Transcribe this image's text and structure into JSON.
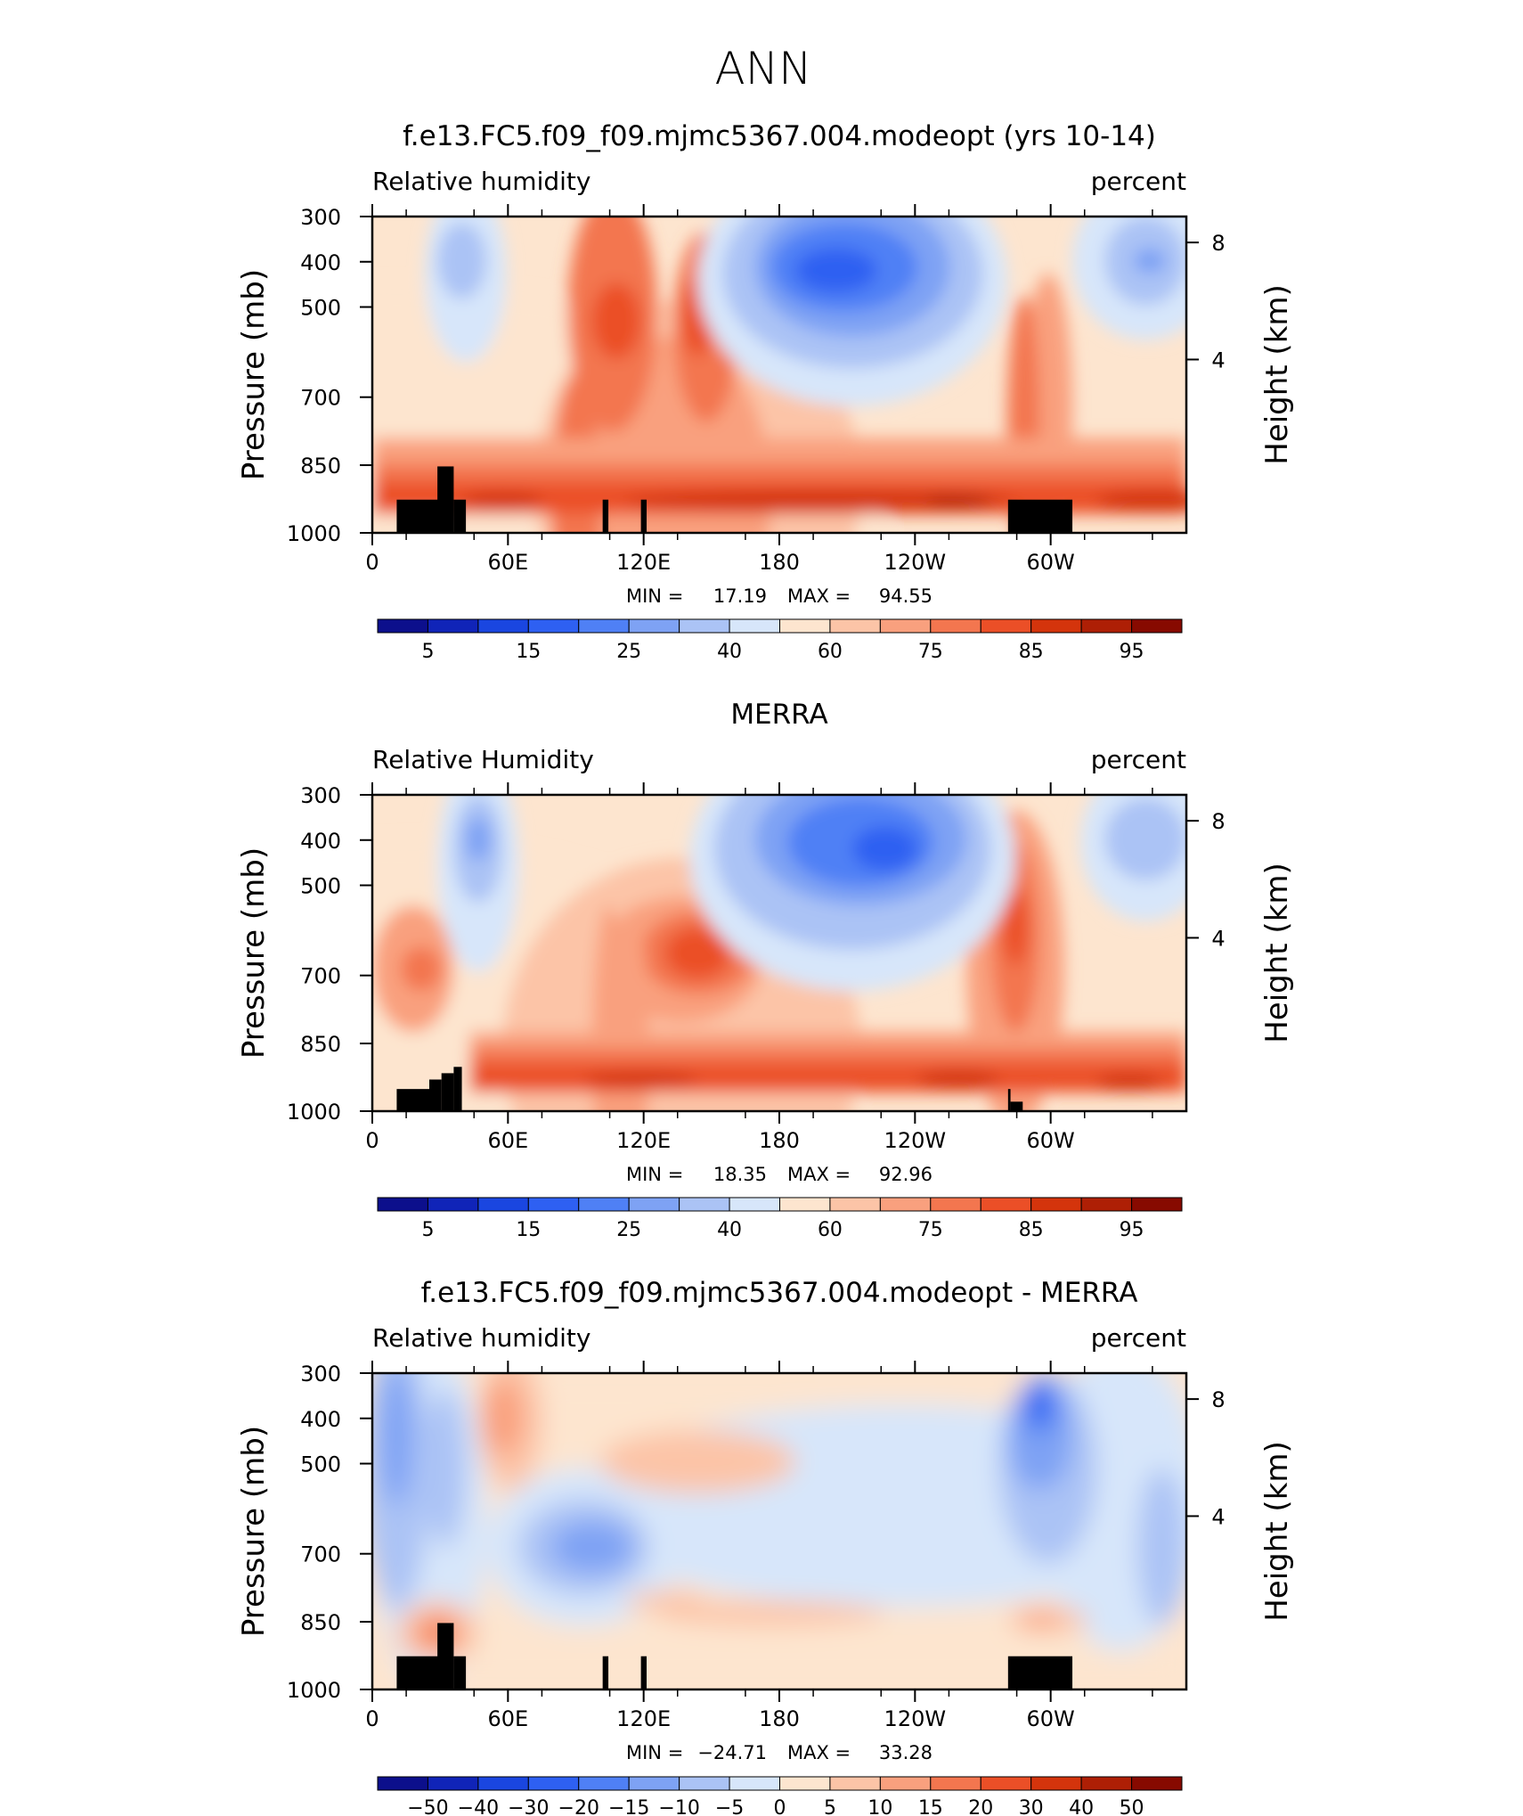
{
  "title": "ANN",
  "colors": {
    "palette": [
      "#0c0f8c",
      "#1024b8",
      "#1a46e0",
      "#2e60f2",
      "#4f80f5",
      "#7ea2f4",
      "#abc3f5",
      "#d7e6fa",
      "#fde5cf",
      "#fcc4a7",
      "#f9a07e",
      "#f3764f",
      "#eb4f27",
      "#d4340c",
      "#ae1f05",
      "#870a00"
    ],
    "land": "#000000"
  },
  "chart_data": [
    {
      "type": "heatmap",
      "title": "f.e13.FC5.f09_f09.mjmc5367.004.modeopt (yrs 10-14)",
      "left_label": "Relative humidity",
      "right_label": "percent",
      "xlabel": "",
      "ylabel": "Pressure (mb)",
      "ylabel_right": "Height (km)",
      "x_ticks": [
        "0",
        "60E",
        "120E",
        "180",
        "120W",
        "60W"
      ],
      "y_ticks": [
        "300",
        "400",
        "500",
        "700",
        "850",
        "1000"
      ],
      "y_ticks_right": [
        "8",
        "4"
      ],
      "xlim": [
        0,
        360
      ],
      "ylim": [
        1000,
        300
      ],
      "min_label": "MIN =",
      "min_value": "17.19",
      "max_label": "MAX =",
      "max_value": "94.55",
      "colorbar_labels": [
        "5",
        "15",
        "25",
        "40",
        "60",
        "75",
        "85",
        "95"
      ]
    },
    {
      "type": "heatmap",
      "title": "MERRA",
      "left_label": "Relative Humidity",
      "right_label": "percent",
      "xlabel": "",
      "ylabel": "Pressure (mb)",
      "ylabel_right": "Height (km)",
      "x_ticks": [
        "0",
        "60E",
        "120E",
        "180",
        "120W",
        "60W"
      ],
      "y_ticks": [
        "300",
        "400",
        "500",
        "700",
        "850",
        "1000"
      ],
      "y_ticks_right": [
        "8",
        "4"
      ],
      "xlim": [
        0,
        360
      ],
      "ylim": [
        1000,
        300
      ],
      "min_label": "MIN =",
      "min_value": "18.35",
      "max_label": "MAX =",
      "max_value": "92.96",
      "colorbar_labels": [
        "5",
        "15",
        "25",
        "40",
        "60",
        "75",
        "85",
        "95"
      ]
    },
    {
      "type": "heatmap",
      "title": "f.e13.FC5.f09_f09.mjmc5367.004.modeopt - MERRA",
      "left_label": "Relative humidity",
      "right_label": "percent",
      "xlabel": "",
      "ylabel": "Pressure (mb)",
      "ylabel_right": "Height (km)",
      "x_ticks": [
        "0",
        "60E",
        "120E",
        "180",
        "120W",
        "60W"
      ],
      "y_ticks": [
        "300",
        "400",
        "500",
        "700",
        "850",
        "1000"
      ],
      "y_ticks_right": [
        "8",
        "4"
      ],
      "xlim": [
        0,
        360
      ],
      "ylim": [
        1000,
        300
      ],
      "min_label": "MIN =",
      "min_value": "−24.71",
      "max_label": "MAX =",
      "max_value": "33.28",
      "colorbar_labels": [
        "−50",
        "−40",
        "−30",
        "−20",
        "−15",
        "−10",
        "−5",
        "0",
        "5",
        "10",
        "15",
        "20",
        "30",
        "40",
        "50"
      ]
    }
  ]
}
